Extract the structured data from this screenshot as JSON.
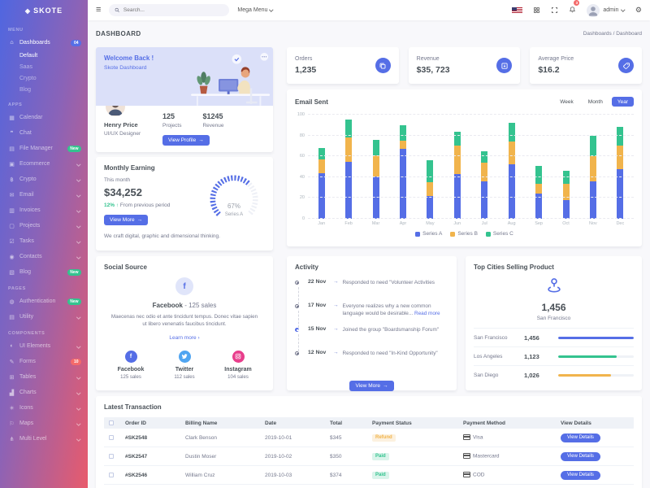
{
  "colors": {
    "primary": "#556ee6",
    "success": "#34c38f",
    "warning": "#f1b44c",
    "info": "#50a5f1",
    "pink": "#e83e8c",
    "danger": "#f46a6a"
  },
  "brand": {
    "name": "SKOTE"
  },
  "navbar": {
    "search_placeholder": "Search...",
    "mega_menu_label": "Mega Menu",
    "notification_count": "3",
    "user_name": "admin"
  },
  "breadcrumb": {
    "title": "DASHBOARD",
    "path": [
      "Dashboards",
      "Dashboard"
    ],
    "separator": "/"
  },
  "sidebar": {
    "sections": [
      {
        "label": "MENU",
        "items": [
          {
            "name": "dashboards",
            "label": "Dashboards",
            "icon": "home",
            "badge": "04",
            "badge_color": "info",
            "active": true,
            "children": [
              "Default",
              "Saas",
              "Crypto",
              "Blog"
            ],
            "active_child": "Default"
          }
        ]
      },
      {
        "label": "APPS",
        "items": [
          {
            "name": "calendar",
            "label": "Calendar",
            "icon": "calendar"
          },
          {
            "name": "chat",
            "label": "Chat",
            "icon": "chat"
          },
          {
            "name": "file-manager",
            "label": "File Manager",
            "icon": "folder",
            "badge": "New",
            "badge_color": "success"
          },
          {
            "name": "ecommerce",
            "label": "Ecommerce",
            "icon": "store",
            "chevron": true
          },
          {
            "name": "crypto",
            "label": "Crypto",
            "icon": "bitcoin",
            "chevron": true
          },
          {
            "name": "email",
            "label": "Email",
            "icon": "envelope",
            "chevron": true
          },
          {
            "name": "invoices",
            "label": "Invoices",
            "icon": "receipt",
            "chevron": true
          },
          {
            "name": "projects",
            "label": "Projects",
            "icon": "briefcase",
            "chevron": true
          },
          {
            "name": "tasks",
            "label": "Tasks",
            "icon": "task",
            "chevron": true
          },
          {
            "name": "contacts",
            "label": "Contacts",
            "icon": "user",
            "chevron": true
          },
          {
            "name": "blog",
            "label": "Blog",
            "icon": "file",
            "badge": "New",
            "badge_color": "success"
          }
        ]
      },
      {
        "label": "PAGES",
        "items": [
          {
            "name": "authentication",
            "label": "Authentication",
            "icon": "user-circle",
            "badge": "New",
            "badge_color": "success"
          },
          {
            "name": "utility",
            "label": "Utility",
            "icon": "page",
            "chevron": true
          }
        ]
      },
      {
        "label": "COMPONENTS",
        "items": [
          {
            "name": "ui-elements",
            "label": "UI Elements",
            "icon": "tone",
            "chevron": true
          },
          {
            "name": "forms",
            "label": "Forms",
            "icon": "pencil",
            "badge": "10",
            "badge_color": "danger"
          },
          {
            "name": "tables",
            "label": "Tables",
            "icon": "table",
            "chevron": true
          },
          {
            "name": "charts",
            "label": "Charts",
            "icon": "chart",
            "chevron": true
          },
          {
            "name": "icons",
            "label": "Icons",
            "icon": "aperture",
            "chevron": true
          },
          {
            "name": "maps",
            "label": "Maps",
            "icon": "map",
            "chevron": true
          },
          {
            "name": "multi-level",
            "label": "Multi Level",
            "icon": "share",
            "chevron": true
          }
        ]
      }
    ]
  },
  "welcome": {
    "title": "Welcome Back !",
    "subtitle": "Skote Dashboard",
    "user_name": "Henry Price",
    "user_role": "UI/UX Designer",
    "stats": [
      {
        "value": "125",
        "label": "Projects"
      },
      {
        "value": "$1245",
        "label": "Revenue"
      }
    ],
    "button_label": "View Profile",
    "button_arrow": "→"
  },
  "stat_cards": [
    {
      "label": "Orders",
      "value": "1,235"
    },
    {
      "label": "Revenue",
      "value": "$35, 723"
    },
    {
      "label": "Average Price",
      "value": "$16.2"
    }
  ],
  "email_sent": {
    "title": "Email Sent",
    "range_buttons": [
      "Week",
      "Month",
      "Year"
    ],
    "active_range": "Year"
  },
  "chart_data": {
    "type": "bar",
    "stacked": true,
    "title": "Email Sent",
    "categories": [
      "Jan",
      "Feb",
      "Mar",
      "Apr",
      "May",
      "Jun",
      "Jul",
      "Aug",
      "Sep",
      "Oct",
      "Nov",
      "Dec"
    ],
    "series": [
      {
        "name": "Series A",
        "color": "#556ee6",
        "values": [
          44,
          55,
          41,
          67,
          22,
          43,
          36,
          52,
          24,
          18,
          36,
          48
        ]
      },
      {
        "name": "Series B",
        "color": "#f1b44c",
        "values": [
          13,
          23,
          20,
          8,
          13,
          27,
          18,
          22,
          10,
          16,
          24,
          22
        ]
      },
      {
        "name": "Series C",
        "color": "#34c38f",
        "values": [
          11,
          17,
          15,
          15,
          21,
          14,
          11,
          18,
          17,
          12,
          20,
          18
        ]
      }
    ],
    "ylim": [
      0,
      100
    ],
    "yticks": [
      0,
      20,
      40,
      60,
      80,
      100
    ],
    "grid": true,
    "legend_position": "bottom"
  },
  "monthly_earning": {
    "title": "Monthly Earning",
    "period_label": "This month",
    "amount": "$34,252",
    "delta": "12%",
    "delta_arrow": "↑",
    "delta_note": "From previous period",
    "button_label": "View More",
    "button_arrow": "→",
    "gauge_value": "67%",
    "gauge_percent": 67,
    "gauge_label": "Series A",
    "footnote": "We craft digital, graphic and dimensional thinking."
  },
  "social": {
    "title": "Social Source",
    "highlight_name": "Facebook",
    "highlight_sep": "-",
    "highlight_sales": "125 sales",
    "description": "Maecenas nec odio et ante tincidunt tempus. Donec vitae sapien ut libero venenatis faucibus tincidunt.",
    "link_label": "Learn more",
    "link_arrow": "›",
    "items": [
      {
        "name": "Facebook",
        "sales": "125 sales",
        "color": "#556ee6",
        "icon": "facebook"
      },
      {
        "name": "Twitter",
        "sales": "112 sales",
        "color": "#50a5f1",
        "icon": "twitter"
      },
      {
        "name": "Instagram",
        "sales": "104 sales",
        "color": "#e83e8c",
        "icon": "instagram"
      }
    ]
  },
  "activity": {
    "title": "Activity",
    "items": [
      {
        "date": "22 Nov",
        "text": "Responded to need \"Volunteer Activities",
        "active": false
      },
      {
        "date": "17 Nov",
        "text": "Everyone realizes why a new common language would be desirable...",
        "link": "Read more",
        "active": false
      },
      {
        "date": "15 Nov",
        "text": "Joined the group \"Boardsmanship Forum\"",
        "active": true
      },
      {
        "date": "12 Nov",
        "text": "Responded to need \"In-Kind Opportunity\"",
        "active": false
      }
    ],
    "button_label": "View More",
    "button_arrow": "→"
  },
  "top_cities": {
    "title": "Top Cities Selling Product",
    "highlight_value": "1,456",
    "highlight_city": "San Francisco",
    "rows": [
      {
        "city": "San Francisco",
        "value": "1,456",
        "num": 1456,
        "color": "#556ee6"
      },
      {
        "city": "Los Angeles",
        "value": "1,123",
        "num": 1123,
        "color": "#34c38f"
      },
      {
        "city": "San Diego",
        "value": "1,026",
        "num": 1026,
        "color": "#f1b44c"
      }
    ]
  },
  "transactions": {
    "title": "Latest Transaction",
    "headers": [
      "Order ID",
      "Billing Name",
      "Date",
      "Total",
      "Payment Status",
      "Payment Method",
      "View Details"
    ],
    "button_label": "View Details",
    "rows": [
      {
        "order_id": "#SK2548",
        "billing_name": "Clark Benson",
        "date": "2019-10-01",
        "total": "$345",
        "status": "Refund",
        "status_color": "warning",
        "method": "Visa"
      },
      {
        "order_id": "#SK2547",
        "billing_name": "Dustin Moser",
        "date": "2019-10-02",
        "total": "$350",
        "status": "Paid",
        "status_color": "success",
        "method": "Mastercard"
      },
      {
        "order_id": "#SK2546",
        "billing_name": "William Cruz",
        "date": "2019-10-03",
        "total": "$374",
        "status": "Paid",
        "status_color": "success",
        "method": "COD"
      }
    ]
  }
}
